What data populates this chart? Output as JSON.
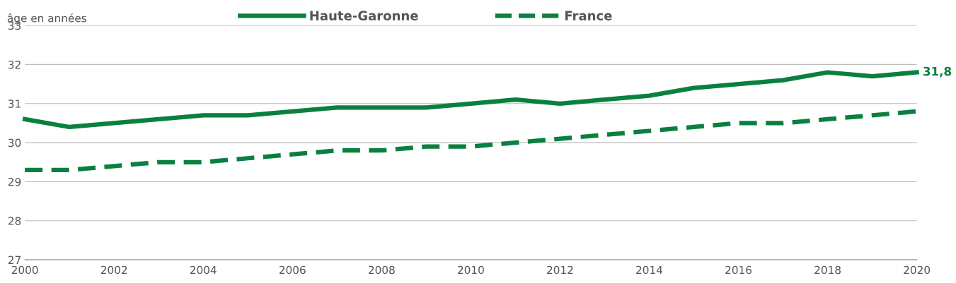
{
  "chart_data": {
    "type": "line",
    "ylabel": "âge en années",
    "x": [
      2000,
      2001,
      2002,
      2003,
      2004,
      2005,
      2006,
      2007,
      2008,
      2009,
      2010,
      2011,
      2012,
      2013,
      2014,
      2015,
      2016,
      2017,
      2018,
      2019,
      2020
    ],
    "series": [
      {
        "name": "Haute-Garonne",
        "color": "#0a8040",
        "line_style": "solid",
        "values": [
          30.6,
          30.4,
          30.5,
          30.6,
          30.7,
          30.7,
          30.8,
          30.9,
          30.9,
          30.9,
          31.0,
          31.1,
          31.0,
          31.1,
          31.2,
          31.4,
          31.5,
          31.6,
          31.8,
          31.7,
          31.8
        ]
      },
      {
        "name": "France",
        "color": "#0a8040",
        "line_style": "dashed",
        "values": [
          29.3,
          29.3,
          29.4,
          29.5,
          29.5,
          29.6,
          29.7,
          29.8,
          29.8,
          29.9,
          29.9,
          30.0,
          30.1,
          30.2,
          30.3,
          30.4,
          30.5,
          30.5,
          30.6,
          30.7,
          30.8
        ]
      }
    ],
    "annotations": [
      {
        "text": "31,8",
        "x": 2020,
        "y": 31.8
      }
    ],
    "xlim": [
      2000,
      2020
    ],
    "xticks": [
      2000,
      2002,
      2004,
      2006,
      2008,
      2010,
      2012,
      2014,
      2016,
      2018,
      2020
    ],
    "ylim": [
      27,
      33
    ],
    "yticks": [
      27,
      28,
      29,
      30,
      31,
      32,
      33
    ],
    "grid": "y",
    "legend": "top",
    "marker": "none"
  }
}
